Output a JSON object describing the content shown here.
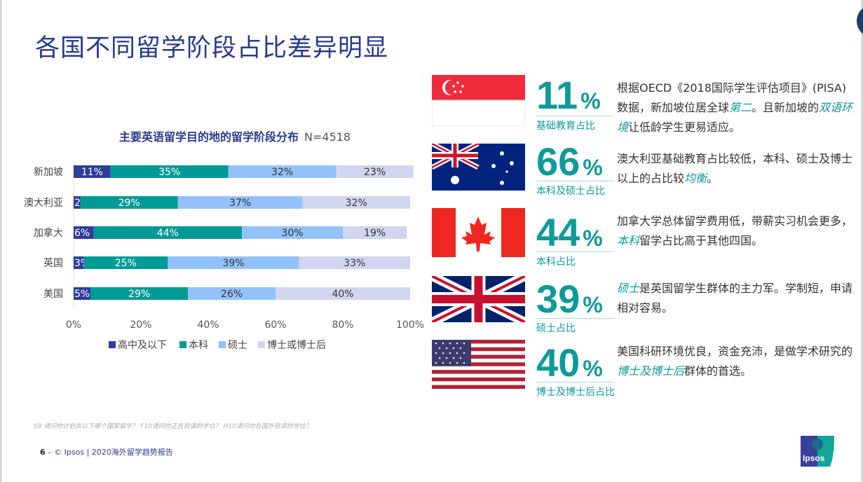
{
  "title": "各国不同留学阶段占比差异明显",
  "chart_data": {
    "type": "bar",
    "stacked": true,
    "orientation": "horizontal",
    "title": "主要英语留学目的地的留学阶段分布",
    "sample": "N=4518",
    "categories": [
      "新加坡",
      "澳大利亚",
      "加拿大",
      "英国",
      "美国"
    ],
    "series": [
      {
        "name": "高中及以下",
        "color": "#2e3c9a",
        "values": [
          11,
          2,
          6,
          3,
          5
        ]
      },
      {
        "name": "本科",
        "color": "#009a96",
        "values": [
          35,
          29,
          44,
          25,
          29
        ]
      },
      {
        "name": "硕士",
        "color": "#93c2fb",
        "values": [
          32,
          37,
          30,
          39,
          26
        ]
      },
      {
        "name": "博士或博士后",
        "color": "#d1d5ef",
        "values": [
          23,
          32,
          19,
          33,
          40
        ]
      }
    ],
    "xticks": [
      "0%",
      "20%",
      "40%",
      "60%",
      "80%",
      "100%"
    ],
    "xlim": [
      0,
      100
    ],
    "legend": "bottom"
  },
  "highlights": [
    {
      "country": "新加坡",
      "value": "11",
      "pct": "%",
      "label": "基础教育占比",
      "desc": [
        "根据OECD《2018国际学生评估项目》(PISA)数据，新加坡位居全球",
        "第二",
        "。且新加坡的",
        "双语环境",
        "让低龄学生更易适应。"
      ]
    },
    {
      "country": "澳大利亚",
      "value": "66",
      "pct": "%",
      "label": "本科及硕士占比",
      "desc": [
        "澳大利亚基础教育占比较低，本科、硕士及博士以上的占比较",
        "均衡",
        "。"
      ]
    },
    {
      "country": "加拿大",
      "value": "44",
      "pct": "%",
      "label": "本科占比",
      "desc": [
        "加拿大学总体留学费用低，带薪实习机会更多，",
        "本科",
        "留学占比高于其他四国。"
      ]
    },
    {
      "country": "英国",
      "value": "39",
      "pct": "%",
      "label": "硕士占比",
      "desc": [
        "",
        "硕士",
        "是英国留学生群体的主力军。学制短，申请相对容易。"
      ]
    },
    {
      "country": "美国",
      "value": "40",
      "pct": "%",
      "label": "博士及博士后占比",
      "desc": [
        "美国科研环境优良，资金充沛，是做学术研究的",
        "博士及博士后",
        "群体的首选。"
      ]
    }
  ],
  "note": "S9 请问你计划去以下哪个国家留学？ F10请问你正在就读的学位？ H10请问你在国外就读的学位？",
  "footer": {
    "page": "6",
    "text": "– © Ipsos | 2020海外留学趋势报告"
  },
  "logo": "Ipsos"
}
